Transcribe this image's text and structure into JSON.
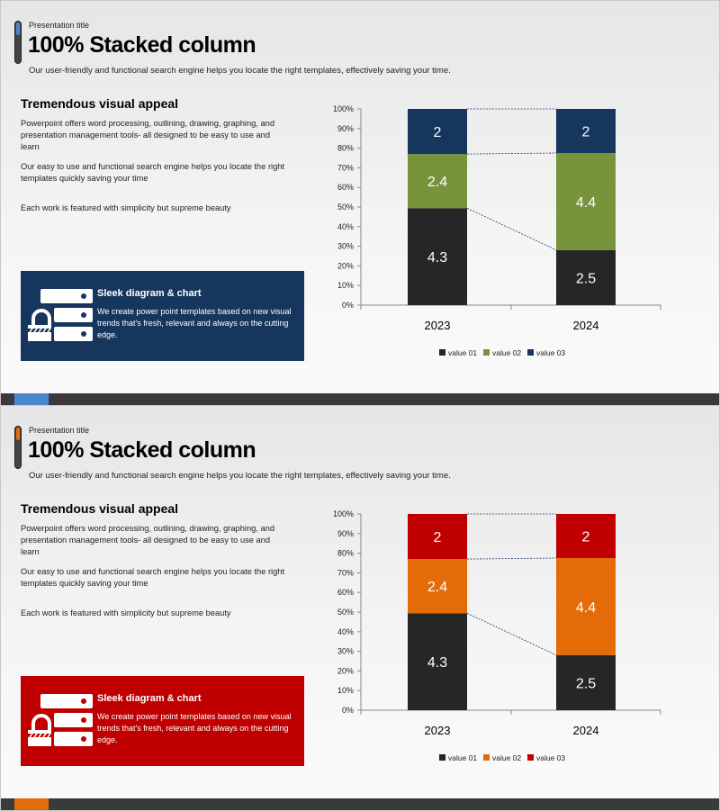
{
  "slides": [
    {
      "sup_title": "Presentation title",
      "title": "100% Stacked column",
      "subtitle": "Our user-friendly and functional search engine helps you locate the right templates, effectively saving your time.",
      "heading": "Tremendous visual appeal",
      "paragraphs": [
        "Powerpoint offers word processing, outlining, drawing, graphing, and presentation management tools- all designed to be easy to use and learn",
        "Our easy to use and functional search engine helps you locate the right templates quickly saving your time",
        "Each work is featured with simplicity but supreme beauty"
      ],
      "callout": {
        "icon": "server-lock-icon",
        "title": "Sleek diagram & chart",
        "body": "We create power point templates based on new visual trends that's fresh, relevant and always on the cutting edge."
      },
      "colors": {
        "accent": "#4a86d0",
        "callout_bg": "#17365d"
      }
    },
    {
      "sup_title": "Presentation title",
      "title": "100% Stacked column",
      "subtitle": "Our user-friendly and functional search engine helps you locate the right templates, effectively saving your time.",
      "heading": "Tremendous visual appeal",
      "paragraphs": [
        "Powerpoint offers word processing, outlining, drawing, graphing, and presentation management tools- all designed to be easy to use and learn",
        "Our easy to use and functional search engine helps you locate the right templates quickly saving your time",
        "Each work is featured with simplicity but supreme beauty"
      ],
      "callout": {
        "icon": "server-lock-icon",
        "title": "Sleek diagram & chart",
        "body": "We create power point templates based on new visual trends that's fresh, relevant and always on the cutting edge."
      },
      "colors": {
        "accent": "#e36c09",
        "callout_bg": "#c00000"
      }
    }
  ],
  "chart_data": [
    {
      "type": "bar",
      "stacked": "100%",
      "categories": [
        "2023",
        "2024"
      ],
      "series": [
        {
          "name": "value 01",
          "values": [
            4.3,
            2.5
          ],
          "color": "#262626"
        },
        {
          "name": "value 02",
          "values": [
            2.4,
            4.4
          ],
          "color": "#77933c"
        },
        {
          "name": "value 03",
          "values": [
            2,
            2
          ],
          "color": "#17365d"
        }
      ],
      "yticks": [
        "0%",
        "10%",
        "20%",
        "30%",
        "40%",
        "50%",
        "60%",
        "70%",
        "80%",
        "90%",
        "100%"
      ],
      "ylim": [
        0,
        100
      ],
      "grid": false,
      "legend": "bottom",
      "series_lines": true
    },
    {
      "type": "bar",
      "stacked": "100%",
      "categories": [
        "2023",
        "2024"
      ],
      "series": [
        {
          "name": "value 01",
          "values": [
            4.3,
            2.5
          ],
          "color": "#262626"
        },
        {
          "name": "value 02",
          "values": [
            2.4,
            4.4
          ],
          "color": "#e36c09"
        },
        {
          "name": "value 03",
          "values": [
            2,
            2
          ],
          "color": "#c00000"
        }
      ],
      "yticks": [
        "0%",
        "10%",
        "20%",
        "30%",
        "40%",
        "50%",
        "60%",
        "70%",
        "80%",
        "90%",
        "100%"
      ],
      "ylim": [
        0,
        100
      ],
      "grid": false,
      "legend": "bottom",
      "series_lines": true
    }
  ]
}
